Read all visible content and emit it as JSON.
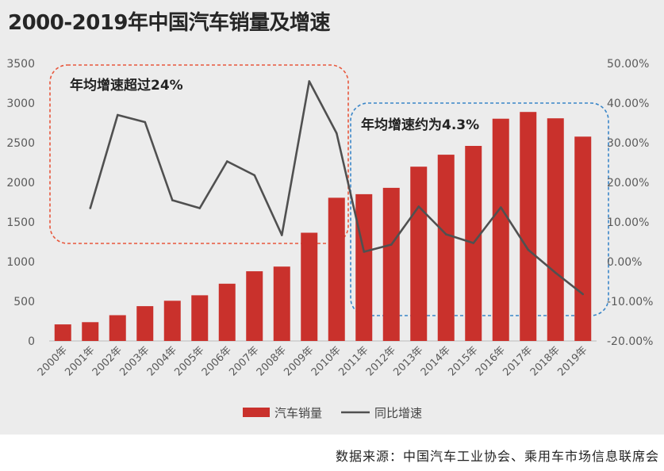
{
  "chart_data": {
    "type": "bar",
    "title": "2000-2019年中国汽车销量及增速",
    "categories": [
      "2000年",
      "2001年",
      "2002年",
      "2003年",
      "2004年",
      "2005年",
      "2006年",
      "2007年",
      "2008年",
      "2009年",
      "2010年",
      "2011年",
      "2012年",
      "2013年",
      "2014年",
      "2015年",
      "2016年",
      "2017年",
      "2018年",
      "2019年"
    ],
    "series": [
      {
        "name": "汽车销量",
        "kind": "bar",
        "axis": "left",
        "color": "#c9312c",
        "values": [
          209,
          237,
          325,
          439,
          507,
          576,
          722,
          879,
          938,
          1365,
          1806,
          1851,
          1931,
          2198,
          2349,
          2460,
          2803,
          2888,
          2808,
          2577
        ]
      },
      {
        "name": "同比增速",
        "kind": "line",
        "axis": "right",
        "color": "#505050",
        "values": [
          null,
          13.5,
          37.0,
          35.2,
          15.5,
          13.5,
          25.3,
          21.8,
          6.7,
          45.5,
          32.4,
          2.5,
          4.3,
          13.9,
          6.9,
          4.7,
          13.7,
          3.0,
          -2.8,
          -8.2
        ]
      }
    ],
    "y_left": {
      "min": 0,
      "max": 3500,
      "step": 500,
      "ticks": [
        "0",
        "500",
        "1000",
        "1500",
        "2000",
        "2500",
        "3000",
        "3500"
      ]
    },
    "y_right": {
      "min": -20,
      "max": 50,
      "step": 10,
      "ticks": [
        "-20.00%",
        "-10.00%",
        "0.00%",
        "10.00%",
        "20.00%",
        "30.00%",
        "40.00%",
        "50.00%"
      ]
    },
    "grid": false,
    "legend": {
      "position": "bottom",
      "items": [
        "汽车销量",
        "同比增速"
      ]
    },
    "annotations": [
      {
        "text": "年均增速超过24%",
        "color": "#e8573c",
        "range": [
          "2000年",
          "2010年"
        ],
        "style": "dashed-box"
      },
      {
        "text": "年均增速约为4.3%",
        "color": "#3a86c8",
        "range": [
          "2011年",
          "2019年"
        ],
        "style": "dashed-box"
      }
    ]
  },
  "source": "数据来源：中国汽车工业协会、乘用车市场信息联席会",
  "colors": {
    "background": "#ececec",
    "bar": "#c9312c",
    "line": "#505050",
    "axis": "#5a5a5a",
    "text": "#262626"
  }
}
